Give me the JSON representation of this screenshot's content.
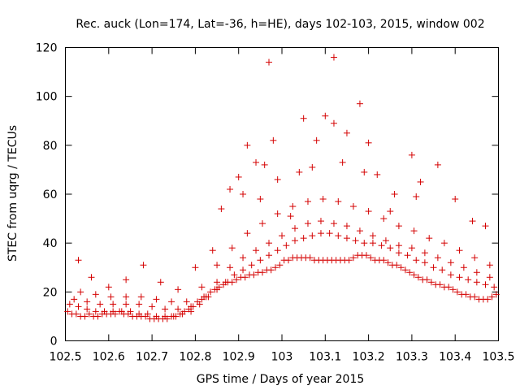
{
  "chart_data": {
    "type": "scatter",
    "title": "Rec. auck (Lon=174, Lat=-36, h=HE), days 102-103, 2015, window 002",
    "xlabel": "GPS time / Days of year 2015",
    "ylabel": "STEC from uqrg / TECUs",
    "xlim": [
      102.5,
      103.5
    ],
    "ylim": [
      0,
      120
    ],
    "xticks": [
      "102.5",
      "102.6",
      "102.7",
      "102.8",
      "102.9",
      "103",
      "103.1",
      "103.2",
      "103.3",
      "103.4",
      "103.5"
    ],
    "yticks": [
      "0",
      "20",
      "40",
      "60",
      "80",
      "100",
      "120"
    ],
    "grid": false,
    "legend": "none",
    "marker": "+",
    "color": "#d40000",
    "series": [
      {
        "x": [
          102.505,
          102.515,
          102.525,
          102.535,
          102.545,
          102.555,
          102.565,
          102.575,
          102.585,
          102.595,
          102.605,
          102.615,
          102.625,
          102.635,
          102.645,
          102.655,
          102.665,
          102.675,
          102.685,
          102.695,
          102.705,
          102.715,
          102.725,
          102.735,
          102.745,
          102.755,
          102.765,
          102.775,
          102.785,
          102.795,
          102.805,
          102.815,
          102.825,
          102.835,
          102.845,
          102.855,
          102.865,
          102.875,
          102.885,
          102.895,
          102.905,
          102.915,
          102.925,
          102.935,
          102.945,
          102.955,
          102.965,
          102.975,
          102.985,
          102.995,
          103.005,
          103.015,
          103.025,
          103.035,
          103.045,
          103.055,
          103.065,
          103.075,
          103.085,
          103.095,
          103.105,
          103.115,
          103.125,
          103.135,
          103.145,
          103.155,
          103.165,
          103.175,
          103.185,
          103.195,
          103.205,
          103.215,
          103.225,
          103.235,
          103.245,
          103.255,
          103.265,
          103.275,
          103.285,
          103.295,
          103.305,
          103.315,
          103.325,
          103.335,
          103.345,
          103.355,
          103.365,
          103.375,
          103.385,
          103.395,
          103.405,
          103.415,
          103.425,
          103.435,
          103.445,
          103.455,
          103.465,
          103.475,
          103.485,
          103.495
        ],
        "y": [
          12,
          11,
          11,
          10,
          10,
          11,
          10,
          10,
          11,
          11,
          11,
          11,
          12,
          11,
          11,
          10,
          10,
          10,
          10,
          9,
          9,
          9,
          9,
          9,
          10,
          10,
          11,
          12,
          13,
          14,
          16,
          17,
          18,
          20,
          21,
          22,
          23,
          24,
          24,
          25,
          26,
          26,
          27,
          27,
          28,
          28,
          29,
          29,
          30,
          31,
          33,
          33,
          34,
          34,
          34,
          34,
          34,
          33,
          33,
          33,
          33,
          33,
          33,
          33,
          33,
          33,
          34,
          35,
          35,
          35,
          34,
          33,
          33,
          33,
          32,
          31,
          31,
          30,
          29,
          28,
          27,
          26,
          25,
          25,
          24,
          23,
          23,
          22,
          22,
          21,
          20,
          19,
          19,
          18,
          18,
          17,
          17,
          17,
          18,
          19
        ]
      },
      {
        "x": [
          102.51,
          102.53,
          102.55,
          102.57,
          102.59,
          102.61,
          102.63,
          102.65,
          102.67,
          102.69,
          102.71,
          102.73,
          102.75,
          102.77,
          102.79,
          102.81,
          102.83,
          102.85,
          102.87,
          102.89,
          102.91,
          102.93,
          102.95,
          102.97,
          102.99,
          103.01,
          103.03,
          103.05,
          103.07,
          103.09,
          103.11,
          103.13,
          103.15,
          103.17,
          103.19,
          103.21,
          103.23,
          103.25,
          103.27,
          103.29,
          103.31,
          103.33,
          103.35,
          103.37,
          103.39,
          103.41,
          103.43,
          103.45,
          103.47,
          103.49
        ],
        "y": [
          15,
          14,
          13,
          12,
          12,
          12,
          12,
          12,
          11,
          11,
          10,
          10,
          10,
          11,
          12,
          15,
          18,
          21,
          24,
          27,
          29,
          31,
          33,
          35,
          37,
          39,
          41,
          42,
          43,
          44,
          44,
          43,
          42,
          41,
          40,
          40,
          39,
          38,
          36,
          35,
          33,
          32,
          30,
          29,
          27,
          26,
          25,
          24,
          23,
          22
        ]
      },
      {
        "x": [
          102.52,
          102.55,
          102.58,
          102.61,
          102.64,
          102.67,
          102.7,
          102.73,
          102.76,
          102.79,
          102.82,
          102.85,
          102.88,
          102.91,
          102.94,
          102.97,
          103.0,
          103.03,
          103.06,
          103.09,
          103.12,
          103.15,
          103.18,
          103.21,
          103.24,
          103.27,
          103.3,
          103.33,
          103.36,
          103.39,
          103.42,
          103.45,
          103.48
        ],
        "y": [
          17,
          16,
          15,
          15,
          15,
          15,
          14,
          13,
          13,
          14,
          18,
          24,
          30,
          34,
          37,
          40,
          43,
          46,
          48,
          49,
          48,
          47,
          45,
          43,
          41,
          39,
          38,
          36,
          34,
          32,
          30,
          28,
          26
        ]
      },
      {
        "x": [
          102.535,
          102.57,
          102.605,
          102.64,
          102.675,
          102.71,
          102.745,
          102.78,
          102.815,
          102.85,
          102.885,
          102.92,
          102.955,
          102.99,
          103.025,
          103.06,
          103.095,
          103.13,
          103.165,
          103.2,
          103.235,
          103.27,
          103.305,
          103.34,
          103.375,
          103.41,
          103.445,
          103.48
        ],
        "y": [
          20,
          19,
          18,
          18,
          18,
          17,
          16,
          16,
          22,
          31,
          38,
          44,
          48,
          52,
          55,
          57,
          58,
          57,
          55,
          53,
          50,
          47,
          45,
          42,
          40,
          37,
          34,
          31
        ]
      },
      {
        "x": [
          102.53,
          102.56,
          102.6,
          102.64,
          102.68,
          102.72,
          102.76,
          102.8,
          102.84,
          102.86,
          102.88,
          102.9,
          102.92,
          102.94,
          102.96,
          102.98,
          103.02,
          103.05,
          103.08,
          103.1,
          103.12,
          103.15,
          103.18,
          103.2,
          103.22,
          103.26,
          103.3,
          103.32,
          103.36,
          103.4,
          103.44,
          103.47
        ],
        "y": [
          33,
          26,
          22,
          25,
          31,
          24,
          21,
          30,
          37,
          54,
          62,
          67,
          80,
          73,
          72,
          82,
          51,
          91,
          82,
          92,
          89,
          85,
          97,
          81,
          68,
          60,
          76,
          65,
          72,
          58,
          49,
          47
        ]
      },
      {
        "x": [
          102.97,
          103.12,
          102.91,
          102.95,
          102.99,
          103.04,
          103.07,
          103.14,
          103.19,
          103.25,
          103.31
        ],
        "y": [
          114,
          116,
          60,
          58,
          66,
          69,
          71,
          73,
          69,
          53,
          59
        ]
      }
    ]
  }
}
